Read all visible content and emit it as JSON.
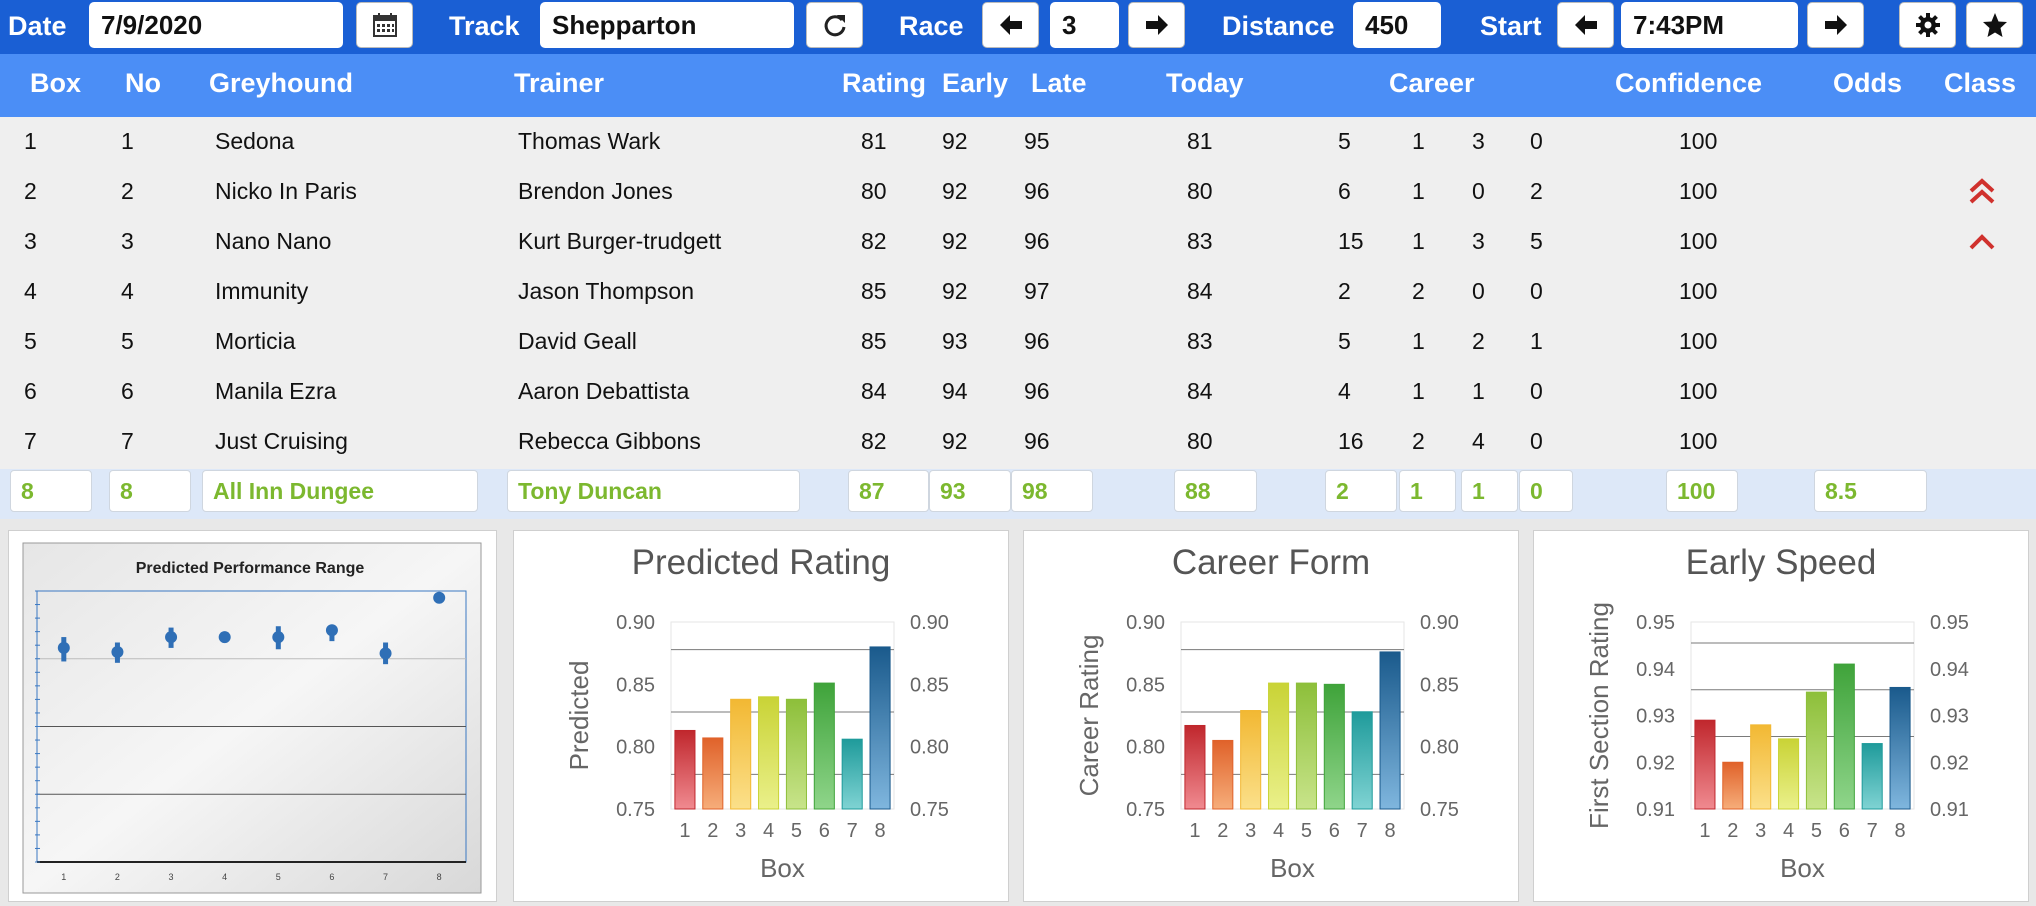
{
  "toolbar": {
    "date_label": "Date",
    "date_value": "7/9/2020",
    "track_label": "Track",
    "track_value": "Shepparton",
    "race_label": "Race",
    "race_value": "3",
    "distance_label": "Distance",
    "distance_value": "450",
    "start_label": "Start",
    "start_value": "7:43PM",
    "icons": [
      "calendar-icon",
      "refresh-icon",
      "arrow-left-icon",
      "arrow-right-icon",
      "gear-icon",
      "star-icon"
    ]
  },
  "columns": {
    "box": "Box",
    "no": "No",
    "greyhound": "Greyhound",
    "trainer": "Trainer",
    "rating": "Rating",
    "early": "Early",
    "late": "Late",
    "today": "Today",
    "career": "Career",
    "confidence": "Confidence",
    "odds": "Odds",
    "class": "Class"
  },
  "rows": [
    {
      "box": "1",
      "no": "1",
      "greyhound": "Sedona",
      "trainer": "Thomas Wark",
      "rating": "81",
      "early": "92",
      "late": "95",
      "today": "81",
      "c1": "5",
      "c2": "1",
      "c3": "3",
      "c4": "0",
      "confidence": "100",
      "odds": "",
      "class_icon": ""
    },
    {
      "box": "2",
      "no": "2",
      "greyhound": "Nicko In Paris",
      "trainer": "Brendon Jones",
      "rating": "80",
      "early": "92",
      "late": "96",
      "today": "80",
      "c1": "6",
      "c2": "1",
      "c3": "0",
      "c4": "2",
      "confidence": "100",
      "odds": "",
      "class_icon": "double-chevron-up-icon"
    },
    {
      "box": "3",
      "no": "3",
      "greyhound": "Nano Nano",
      "trainer": "Kurt Burger-trudgett",
      "rating": "82",
      "early": "92",
      "late": "96",
      "today": "83",
      "c1": "15",
      "c2": "1",
      "c3": "3",
      "c4": "5",
      "confidence": "100",
      "odds": "",
      "class_icon": "chevron-up-icon"
    },
    {
      "box": "4",
      "no": "4",
      "greyhound": "Immunity",
      "trainer": "Jason Thompson",
      "rating": "85",
      "early": "92",
      "late": "97",
      "today": "84",
      "c1": "2",
      "c2": "2",
      "c3": "0",
      "c4": "0",
      "confidence": "100",
      "odds": "",
      "class_icon": ""
    },
    {
      "box": "5",
      "no": "5",
      "greyhound": "Morticia",
      "trainer": "David Geall",
      "rating": "85",
      "early": "93",
      "late": "96",
      "today": "83",
      "c1": "5",
      "c2": "1",
      "c3": "2",
      "c4": "1",
      "confidence": "100",
      "odds": "",
      "class_icon": ""
    },
    {
      "box": "6",
      "no": "6",
      "greyhound": "Manila Ezra",
      "trainer": "Aaron Debattista",
      "rating": "84",
      "early": "94",
      "late": "96",
      "today": "84",
      "c1": "4",
      "c2": "1",
      "c3": "1",
      "c4": "0",
      "confidence": "100",
      "odds": "",
      "class_icon": ""
    },
    {
      "box": "7",
      "no": "7",
      "greyhound": "Just Cruising",
      "trainer": "Rebecca Gibbons",
      "rating": "82",
      "early": "92",
      "late": "96",
      "today": "80",
      "c1": "16",
      "c2": "2",
      "c3": "4",
      "c4": "0",
      "confidence": "100",
      "odds": "",
      "class_icon": ""
    }
  ],
  "entry_row": {
    "box": "8",
    "no": "8",
    "greyhound": "All Inn Dungee",
    "trainer": "Tony Duncan",
    "rating": "87",
    "early": "93",
    "late": "98",
    "today": "88",
    "c1": "2",
    "c2": "1",
    "c3": "1",
    "c4": "0",
    "confidence": "100",
    "odds": "8.5"
  },
  "colors": {
    "topbar": "#1a5fd4",
    "header": "#4b8ef6",
    "entry_text": "#7cb82f",
    "class_arrow": "#d0312d"
  },
  "chart_data": [
    {
      "type": "scatter",
      "title": "Predicted Performance Range",
      "categories": [
        "1",
        "2",
        "3",
        "4",
        "5",
        "6",
        "7",
        "8"
      ],
      "ylim": [
        0.7,
        0.9
      ],
      "series": [
        {
          "values": [
            0.858,
            0.855,
            0.866,
            0.866,
            0.866,
            0.871,
            0.854,
            0.895
          ],
          "low": [
            0.848,
            0.847,
            0.858,
            0.862,
            0.857,
            0.863,
            0.846,
            null
          ],
          "high": [
            0.866,
            0.862,
            0.873,
            0.869,
            0.874,
            0.875,
            0.862,
            null
          ]
        }
      ],
      "grid": true
    },
    {
      "type": "bar",
      "title": "Predicted Rating",
      "categories": [
        "1",
        "2",
        "3",
        "4",
        "5",
        "6",
        "7",
        "8"
      ],
      "values": [
        0.813,
        0.807,
        0.838,
        0.84,
        0.838,
        0.851,
        0.806,
        0.88
      ],
      "xlabel": "Box",
      "ylabel": "Predicted",
      "ylim": [
        0.75,
        0.9
      ],
      "yticks": [
        "0.75",
        "0.80",
        "0.85",
        "0.90"
      ],
      "gridlines": [
        0.7778,
        0.8278,
        0.8778
      ]
    },
    {
      "type": "bar",
      "title": "Career Form",
      "categories": [
        "1",
        "2",
        "3",
        "4",
        "5",
        "6",
        "7",
        "8"
      ],
      "values": [
        0.817,
        0.805,
        0.829,
        0.851,
        0.851,
        0.85,
        0.828,
        0.876
      ],
      "xlabel": "Box",
      "ylabel": "Career Rating",
      "ylim": [
        0.75,
        0.9
      ],
      "yticks": [
        "0.75",
        "0.80",
        "0.85",
        "0.90"
      ],
      "gridlines": [
        0.7778,
        0.8278,
        0.8778
      ]
    },
    {
      "type": "bar",
      "title": "Early Speed",
      "categories": [
        "1",
        "2",
        "3",
        "4",
        "5",
        "6",
        "7",
        "8"
      ],
      "values": [
        0.929,
        0.92,
        0.928,
        0.925,
        0.935,
        0.941,
        0.924,
        0.936
      ],
      "xlabel": "Box",
      "ylabel": "First Section Rating",
      "ylim": [
        0.91,
        0.95
      ],
      "yticks": [
        "0.91",
        "0.92",
        "0.93",
        "0.94",
        "0.95"
      ],
      "gridlines": [
        0.9255,
        0.9355,
        0.9455
      ]
    }
  ]
}
